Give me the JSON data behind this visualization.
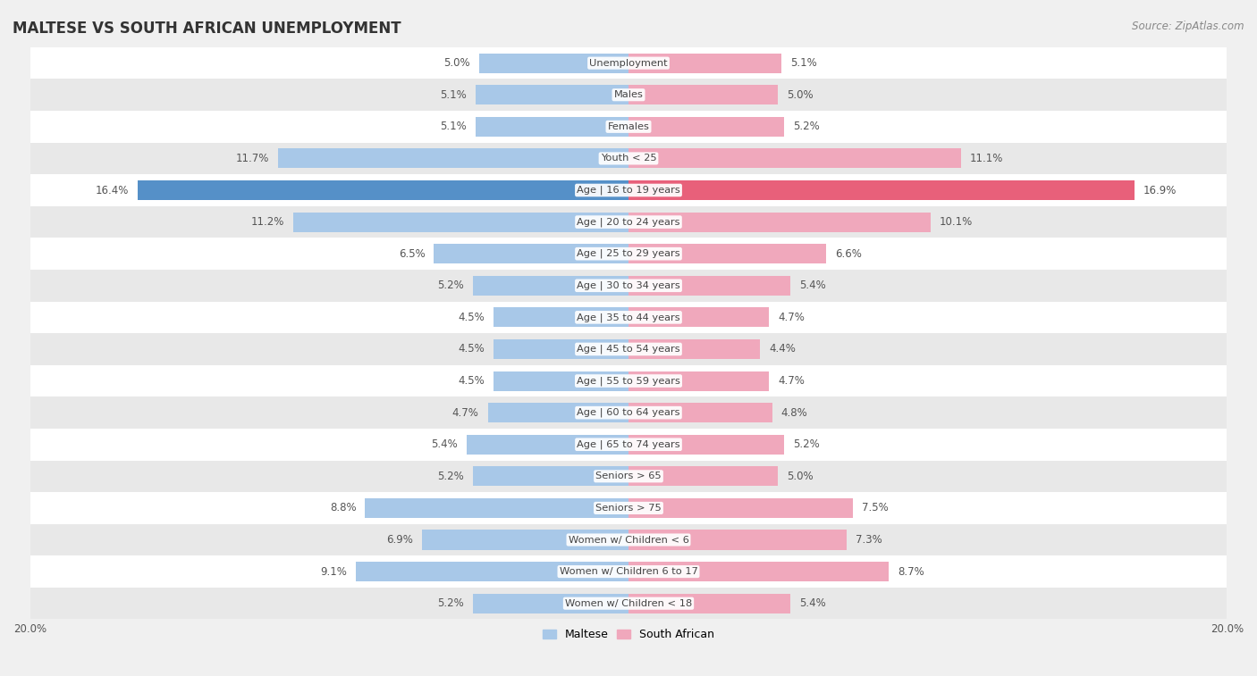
{
  "title": "MALTESE VS SOUTH AFRICAN UNEMPLOYMENT",
  "source": "Source: ZipAtlas.com",
  "categories": [
    "Unemployment",
    "Males",
    "Females",
    "Youth < 25",
    "Age | 16 to 19 years",
    "Age | 20 to 24 years",
    "Age | 25 to 29 years",
    "Age | 30 to 34 years",
    "Age | 35 to 44 years",
    "Age | 45 to 54 years",
    "Age | 55 to 59 years",
    "Age | 60 to 64 years",
    "Age | 65 to 74 years",
    "Seniors > 65",
    "Seniors > 75",
    "Women w/ Children < 6",
    "Women w/ Children 6 to 17",
    "Women w/ Children < 18"
  ],
  "maltese": [
    5.0,
    5.1,
    5.1,
    11.7,
    16.4,
    11.2,
    6.5,
    5.2,
    4.5,
    4.5,
    4.5,
    4.7,
    5.4,
    5.2,
    8.8,
    6.9,
    9.1,
    5.2
  ],
  "south_african": [
    5.1,
    5.0,
    5.2,
    11.1,
    16.9,
    10.1,
    6.6,
    5.4,
    4.7,
    4.4,
    4.7,
    4.8,
    5.2,
    5.0,
    7.5,
    7.3,
    8.7,
    5.4
  ],
  "maltese_color": "#a8c8e8",
  "south_african_color": "#f0a8bc",
  "highlight_maltese_color": "#5590c8",
  "highlight_south_african_color": "#e8607a",
  "row_light": "#ffffff",
  "row_dark": "#e8e8e8",
  "bg_color": "#f0f0f0",
  "xlim": 20.0,
  "bar_height": 0.62,
  "highlight_rows": [
    4
  ],
  "label_color": "#555555",
  "center_label_color": "#444444",
  "legend_labels": [
    "Maltese",
    "South African"
  ],
  "title_fontsize": 12,
  "label_fontsize": 8.5,
  "cat_fontsize": 8.2
}
